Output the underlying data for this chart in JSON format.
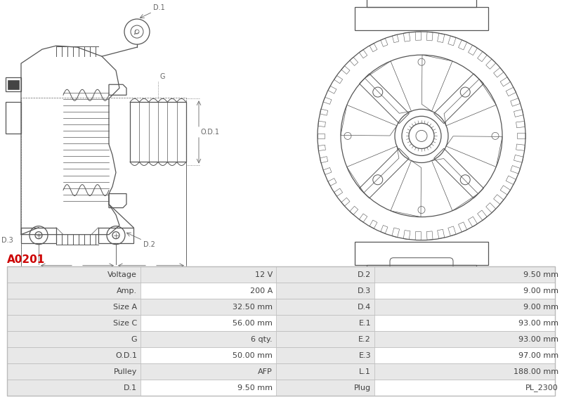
{
  "title": "A0201",
  "title_color": "#cc0000",
  "table_rows": [
    [
      "Voltage",
      "12 V",
      "D.2",
      "9.50 mm"
    ],
    [
      "Amp.",
      "200 A",
      "D.3",
      "9.00 mm"
    ],
    [
      "Size A",
      "32.50 mm",
      "D.4",
      "9.00 mm"
    ],
    [
      "Size C",
      "56.00 mm",
      "E.1",
      "93.00 mm"
    ],
    [
      "G",
      "6 qty.",
      "E.2",
      "93.00 mm"
    ],
    [
      "O.D.1",
      "50.00 mm",
      "E.3",
      "97.00 mm"
    ],
    [
      "Pulley",
      "AFP",
      "L.1",
      "188.00 mm"
    ],
    [
      "D.1",
      "9.50 mm",
      "Plug",
      "PL_2300"
    ]
  ],
  "bg_white": "#ffffff",
  "bg_gray": "#e8e8e8",
  "text_color": "#404040",
  "border_color": "#bbbbbb",
  "line_color": "#555555",
  "dim_color": "#666666"
}
